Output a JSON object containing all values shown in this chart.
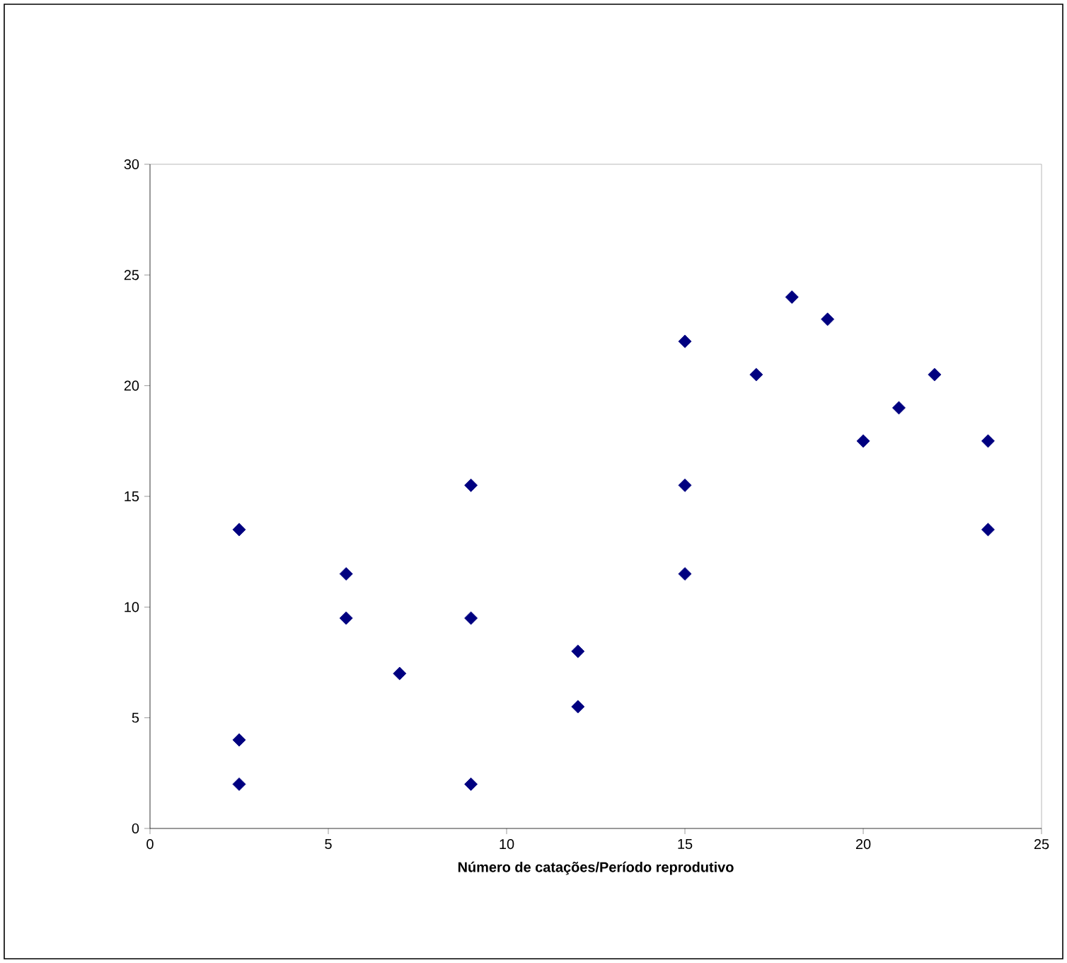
{
  "chart_data": {
    "type": "scatter",
    "xlabel": "Número de catações/Período reprodutivo",
    "x": [
      2.5,
      2.5,
      2.5,
      5.5,
      5.5,
      7,
      9,
      9,
      9,
      12,
      12,
      15,
      15,
      15,
      17,
      18,
      19,
      20,
      21,
      22,
      23.5,
      23.5
    ],
    "values": [
      2,
      4,
      13.5,
      11.5,
      9.5,
      7,
      2,
      9.5,
      15.5,
      8,
      5.5,
      22,
      15.5,
      11.5,
      20.5,
      24,
      23,
      17.5,
      19,
      20.5,
      17.5,
      13.5
    ],
    "color": "#000080",
    "marker": "diamond",
    "xlim": [
      0,
      25
    ],
    "xticks": [
      0,
      5,
      10,
      15,
      20,
      25
    ],
    "ylim": [
      0,
      30
    ],
    "yticks": [
      0,
      5,
      10,
      15,
      20,
      25,
      30
    ],
    "tick_labels": "xy"
  }
}
